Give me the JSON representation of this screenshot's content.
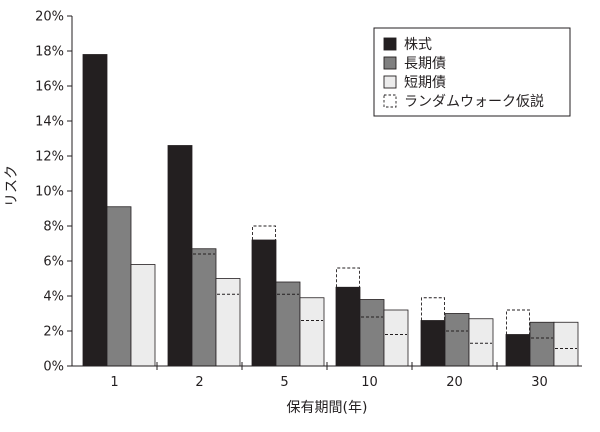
{
  "chart_data": {
    "type": "bar",
    "title": "",
    "xlabel": "保有期間(年)",
    "ylabel": "リスク",
    "ylim": [
      0,
      20
    ],
    "y_ticks": [
      0,
      2,
      4,
      6,
      8,
      10,
      12,
      14,
      16,
      18,
      20
    ],
    "y_tick_labels": [
      "0%",
      "2%",
      "4%",
      "6%",
      "8%",
      "10%",
      "12%",
      "14%",
      "16%",
      "18%",
      "20%"
    ],
    "categories": [
      "1",
      "2",
      "5",
      "10",
      "20",
      "30"
    ],
    "grid": false,
    "legend_position": "top-right",
    "series": [
      {
        "name": "株式",
        "color": "#231f20",
        "values": [
          17.8,
          12.6,
          7.2,
          4.5,
          2.6,
          1.8
        ]
      },
      {
        "name": "長期債",
        "color": "#808080",
        "values": [
          9.1,
          6.7,
          4.8,
          3.8,
          3.0,
          2.5
        ]
      },
      {
        "name": "短期債",
        "color": "#ececec",
        "values": [
          5.8,
          5.0,
          3.9,
          3.2,
          2.7,
          2.5
        ]
      }
    ],
    "random_walk": {
      "name": "ランダムウォーク仮説",
      "style": "dashed",
      "values": [
        [
          null,
          null,
          null
        ],
        [
          null,
          6.4,
          4.1
        ],
        [
          8.0,
          4.1,
          2.6
        ],
        [
          5.6,
          2.8,
          1.8
        ],
        [
          3.9,
          2.0,
          1.3
        ],
        [
          3.2,
          1.6,
          1.0
        ]
      ]
    }
  }
}
